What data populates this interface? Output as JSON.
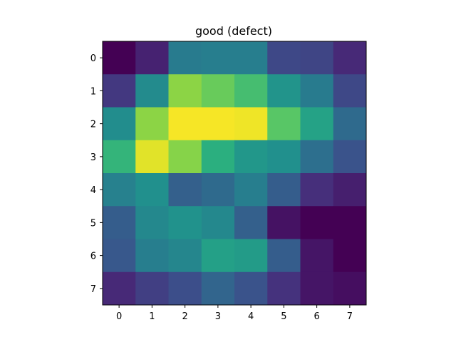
{
  "chart_data": {
    "type": "heatmap",
    "title": "good (defect)",
    "xlabel": "",
    "ylabel": "",
    "x_ticks": [
      "0",
      "1",
      "2",
      "3",
      "4",
      "5",
      "6",
      "7"
    ],
    "y_ticks": [
      "0",
      "1",
      "2",
      "3",
      "4",
      "5",
      "6",
      "7"
    ],
    "colormap": "viridis",
    "value_range": [
      0,
      1
    ],
    "grid": false,
    "values": [
      [
        0.0,
        0.1,
        0.42,
        0.43,
        0.43,
        0.22,
        0.21,
        0.12
      ],
      [
        0.17,
        0.48,
        0.83,
        0.77,
        0.7,
        0.52,
        0.42,
        0.22
      ],
      [
        0.49,
        0.83,
        0.99,
        0.99,
        0.98,
        0.74,
        0.58,
        0.35
      ],
      [
        0.66,
        0.96,
        0.82,
        0.64,
        0.53,
        0.5,
        0.37,
        0.26
      ],
      [
        0.44,
        0.5,
        0.31,
        0.35,
        0.43,
        0.3,
        0.14,
        0.09
      ],
      [
        0.3,
        0.47,
        0.51,
        0.47,
        0.31,
        0.05,
        0.0,
        0.0
      ],
      [
        0.28,
        0.43,
        0.46,
        0.57,
        0.55,
        0.3,
        0.06,
        0.0
      ],
      [
        0.12,
        0.19,
        0.24,
        0.33,
        0.26,
        0.15,
        0.06,
        0.04
      ]
    ]
  }
}
